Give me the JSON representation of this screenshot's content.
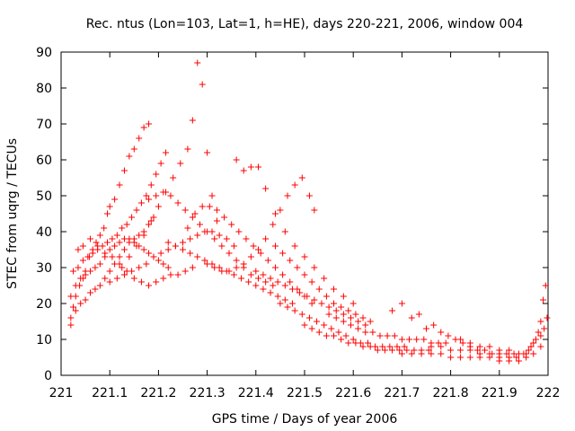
{
  "chart_data": {
    "type": "scatter",
    "title": "Rec. ntus (Lon=103, Lat=1, h=HE), days 220-221, 2006, window 004",
    "xlabel": "GPS time / Days of year 2006",
    "ylabel": "STEC from uqrg / TECUs",
    "xlim": [
      221,
      222
    ],
    "ylim": [
      0,
      90
    ],
    "xticks": [
      "221",
      "221.1",
      "221.2",
      "221.3",
      "221.4",
      "221.5",
      "221.6",
      "221.7",
      "221.8",
      "221.9",
      "222"
    ],
    "yticks": [
      "0",
      "10",
      "20",
      "30",
      "40",
      "50",
      "60",
      "70",
      "80",
      "90"
    ],
    "grid": false,
    "marker": "+",
    "color": "#ff0000",
    "points": [
      [
        221.02,
        14
      ],
      [
        221.025,
        19
      ],
      [
        221.03,
        22
      ],
      [
        221.038,
        25
      ],
      [
        221.045,
        27
      ],
      [
        221.05,
        29
      ],
      [
        221.058,
        33
      ],
      [
        221.065,
        35
      ],
      [
        221.072,
        37
      ],
      [
        221.08,
        39
      ],
      [
        221.088,
        41
      ],
      [
        221.095,
        45
      ],
      [
        221.1,
        47
      ],
      [
        221.11,
        49
      ],
      [
        221.12,
        53
      ],
      [
        221.13,
        57
      ],
      [
        221.14,
        61
      ],
      [
        221.15,
        63
      ],
      [
        221.16,
        66
      ],
      [
        221.17,
        69
      ],
      [
        221.18,
        70
      ],
      [
        221.02,
        16
      ],
      [
        221.03,
        18
      ],
      [
        221.04,
        20
      ],
      [
        221.05,
        21
      ],
      [
        221.06,
        23
      ],
      [
        221.07,
        24
      ],
      [
        221.08,
        25
      ],
      [
        221.09,
        27
      ],
      [
        221.1,
        29
      ],
      [
        221.11,
        31
      ],
      [
        221.12,
        33
      ],
      [
        221.13,
        35
      ],
      [
        221.14,
        37
      ],
      [
        221.15,
        38
      ],
      [
        221.16,
        39
      ],
      [
        221.17,
        40
      ],
      [
        221.18,
        42
      ],
      [
        221.19,
        44
      ],
      [
        221.02,
        22
      ],
      [
        221.03,
        25
      ],
      [
        221.04,
        27
      ],
      [
        221.05,
        28
      ],
      [
        221.06,
        29
      ],
      [
        221.07,
        30
      ],
      [
        221.08,
        31
      ],
      [
        221.09,
        33
      ],
      [
        221.1,
        35
      ],
      [
        221.11,
        36
      ],
      [
        221.12,
        37
      ],
      [
        221.13,
        38
      ],
      [
        221.14,
        38
      ],
      [
        221.15,
        37
      ],
      [
        221.16,
        36
      ],
      [
        221.17,
        35
      ],
      [
        221.18,
        34
      ],
      [
        221.19,
        33
      ],
      [
        221.2,
        32
      ],
      [
        221.21,
        31
      ],
      [
        221.22,
        30
      ],
      [
        221.025,
        29
      ],
      [
        221.035,
        30
      ],
      [
        221.045,
        32
      ],
      [
        221.055,
        33
      ],
      [
        221.065,
        34
      ],
      [
        221.075,
        35
      ],
      [
        221.085,
        36
      ],
      [
        221.095,
        37
      ],
      [
        221.105,
        38
      ],
      [
        221.115,
        39
      ],
      [
        221.125,
        41
      ],
      [
        221.135,
        42
      ],
      [
        221.145,
        44
      ],
      [
        221.155,
        46
      ],
      [
        221.165,
        48
      ],
      [
        221.175,
        50
      ],
      [
        221.185,
        53
      ],
      [
        221.195,
        56
      ],
      [
        221.205,
        59
      ],
      [
        221.215,
        62
      ],
      [
        221.035,
        35
      ],
      [
        221.045,
        36
      ],
      [
        221.06,
        38
      ],
      [
        221.075,
        36
      ],
      [
        221.09,
        34
      ],
      [
        221.105,
        33
      ],
      [
        221.12,
        31
      ],
      [
        221.135,
        29
      ],
      [
        221.15,
        27
      ],
      [
        221.165,
        26
      ],
      [
        221.18,
        25
      ],
      [
        221.195,
        26
      ],
      [
        221.21,
        27
      ],
      [
        221.225,
        28
      ],
      [
        221.24,
        28
      ],
      [
        221.255,
        29
      ],
      [
        221.27,
        30
      ],
      [
        221.1,
        26
      ],
      [
        221.115,
        27
      ],
      [
        221.13,
        28
      ],
      [
        221.145,
        29
      ],
      [
        221.16,
        30
      ],
      [
        221.175,
        31
      ],
      [
        221.19,
        33
      ],
      [
        221.205,
        34
      ],
      [
        221.22,
        35
      ],
      [
        221.235,
        36
      ],
      [
        221.25,
        37
      ],
      [
        221.265,
        38
      ],
      [
        221.28,
        39
      ],
      [
        221.295,
        40
      ],
      [
        221.31,
        40
      ],
      [
        221.325,
        39
      ],
      [
        221.34,
        38
      ],
      [
        221.355,
        36
      ],
      [
        221.125,
        30
      ],
      [
        221.14,
        33
      ],
      [
        221.155,
        36
      ],
      [
        221.17,
        39
      ],
      [
        221.185,
        43
      ],
      [
        221.2,
        47
      ],
      [
        221.215,
        51
      ],
      [
        221.23,
        55
      ],
      [
        221.245,
        59
      ],
      [
        221.26,
        63
      ],
      [
        221.27,
        71
      ],
      [
        221.28,
        87
      ],
      [
        221.29,
        81
      ],
      [
        221.3,
        62
      ],
      [
        221.31,
        50
      ],
      [
        221.32,
        43
      ],
      [
        221.18,
        49
      ],
      [
        221.195,
        50
      ],
      [
        221.21,
        51
      ],
      [
        221.225,
        50
      ],
      [
        221.24,
        48
      ],
      [
        221.255,
        46
      ],
      [
        221.27,
        44
      ],
      [
        221.285,
        42
      ],
      [
        221.3,
        40
      ],
      [
        221.315,
        38
      ],
      [
        221.33,
        36
      ],
      [
        221.345,
        34
      ],
      [
        221.36,
        32
      ],
      [
        221.375,
        30
      ],
      [
        221.39,
        28
      ],
      [
        221.405,
        27
      ],
      [
        221.42,
        26
      ],
      [
        221.435,
        25
      ],
      [
        221.22,
        37
      ],
      [
        221.235,
        36
      ],
      [
        221.25,
        35
      ],
      [
        221.265,
        34
      ],
      [
        221.28,
        33
      ],
      [
        221.295,
        32
      ],
      [
        221.31,
        31
      ],
      [
        221.325,
        30
      ],
      [
        221.34,
        29
      ],
      [
        221.355,
        28
      ],
      [
        221.37,
        27
      ],
      [
        221.385,
        26
      ],
      [
        221.4,
        25
      ],
      [
        221.415,
        24
      ],
      [
        221.43,
        23
      ],
      [
        221.445,
        22
      ],
      [
        221.46,
        21
      ],
      [
        221.475,
        20
      ],
      [
        221.26,
        41
      ],
      [
        221.275,
        45
      ],
      [
        221.29,
        47
      ],
      [
        221.305,
        47
      ],
      [
        221.32,
        46
      ],
      [
        221.335,
        44
      ],
      [
        221.35,
        42
      ],
      [
        221.365,
        40
      ],
      [
        221.38,
        38
      ],
      [
        221.395,
        36
      ],
      [
        221.41,
        34
      ],
      [
        221.425,
        32
      ],
      [
        221.44,
        30
      ],
      [
        221.455,
        28
      ],
      [
        221.47,
        26
      ],
      [
        221.485,
        24
      ],
      [
        221.5,
        22
      ],
      [
        221.515,
        20
      ],
      [
        221.3,
        31
      ],
      [
        221.315,
        30
      ],
      [
        221.33,
        29
      ],
      [
        221.345,
        29
      ],
      [
        221.36,
        30
      ],
      [
        221.375,
        31
      ],
      [
        221.39,
        33
      ],
      [
        221.405,
        35
      ],
      [
        221.42,
        38
      ],
      [
        221.435,
        42
      ],
      [
        221.45,
        46
      ],
      [
        221.465,
        50
      ],
      [
        221.48,
        53
      ],
      [
        221.495,
        55
      ],
      [
        221.51,
        50
      ],
      [
        221.52,
        46
      ],
      [
        221.36,
        60
      ],
      [
        221.375,
        57
      ],
      [
        221.39,
        58
      ],
      [
        221.405,
        58
      ],
      [
        221.42,
        52
      ],
      [
        221.44,
        45
      ],
      [
        221.46,
        40
      ],
      [
        221.48,
        36
      ],
      [
        221.5,
        33
      ],
      [
        221.52,
        30
      ],
      [
        221.54,
        27
      ],
      [
        221.56,
        24
      ],
      [
        221.58,
        22
      ],
      [
        221.6,
        20
      ],
      [
        221.4,
        29
      ],
      [
        221.415,
        28
      ],
      [
        221.43,
        27
      ],
      [
        221.445,
        26
      ],
      [
        221.46,
        25
      ],
      [
        221.475,
        24
      ],
      [
        221.49,
        23
      ],
      [
        221.505,
        22
      ],
      [
        221.52,
        21
      ],
      [
        221.535,
        20
      ],
      [
        221.55,
        19
      ],
      [
        221.565,
        18
      ],
      [
        221.58,
        17
      ],
      [
        221.595,
        16
      ],
      [
        221.61,
        15
      ],
      [
        221.625,
        14
      ],
      [
        221.44,
        36
      ],
      [
        221.455,
        34
      ],
      [
        221.47,
        32
      ],
      [
        221.485,
        30
      ],
      [
        221.5,
        28
      ],
      [
        221.515,
        26
      ],
      [
        221.53,
        24
      ],
      [
        221.545,
        22
      ],
      [
        221.56,
        20
      ],
      [
        221.575,
        19
      ],
      [
        221.59,
        18
      ],
      [
        221.605,
        17
      ],
      [
        221.62,
        16
      ],
      [
        221.635,
        15
      ],
      [
        221.45,
        20
      ],
      [
        221.465,
        19
      ],
      [
        221.48,
        18
      ],
      [
        221.495,
        17
      ],
      [
        221.51,
        16
      ],
      [
        221.525,
        15
      ],
      [
        221.54,
        14
      ],
      [
        221.555,
        13
      ],
      [
        221.57,
        12
      ],
      [
        221.585,
        11
      ],
      [
        221.6,
        10
      ],
      [
        221.615,
        9
      ],
      [
        221.63,
        9
      ],
      [
        221.645,
        8
      ],
      [
        221.66,
        8
      ],
      [
        221.675,
        8
      ],
      [
        221.69,
        8
      ],
      [
        221.705,
        8
      ],
      [
        221.5,
        14
      ],
      [
        221.515,
        13
      ],
      [
        221.53,
        12
      ],
      [
        221.545,
        11
      ],
      [
        221.56,
        11
      ],
      [
        221.575,
        10
      ],
      [
        221.59,
        9
      ],
      [
        221.605,
        9
      ],
      [
        221.62,
        8
      ],
      [
        221.635,
        8
      ],
      [
        221.65,
        7
      ],
      [
        221.665,
        7
      ],
      [
        221.68,
        7
      ],
      [
        221.695,
        7
      ],
      [
        221.71,
        7
      ],
      [
        221.725,
        7
      ],
      [
        221.74,
        7
      ],
      [
        221.755,
        7
      ],
      [
        221.55,
        17
      ],
      [
        221.565,
        16
      ],
      [
        221.58,
        15
      ],
      [
        221.595,
        14
      ],
      [
        221.61,
        13
      ],
      [
        221.625,
        12
      ],
      [
        221.64,
        12
      ],
      [
        221.655,
        11
      ],
      [
        221.67,
        11
      ],
      [
        221.685,
        11
      ],
      [
        221.7,
        10
      ],
      [
        221.715,
        10
      ],
      [
        221.73,
        10
      ],
      [
        221.745,
        10
      ],
      [
        221.76,
        9
      ],
      [
        221.775,
        9
      ],
      [
        221.79,
        9
      ],
      [
        221.68,
        18
      ],
      [
        221.7,
        20
      ],
      [
        221.72,
        16
      ],
      [
        221.735,
        17
      ],
      [
        221.75,
        13
      ],
      [
        221.765,
        14
      ],
      [
        221.78,
        12
      ],
      [
        221.795,
        11
      ],
      [
        221.81,
        10
      ],
      [
        221.825,
        9
      ],
      [
        221.84,
        8
      ],
      [
        221.855,
        7
      ],
      [
        221.87,
        7
      ],
      [
        221.885,
        6
      ],
      [
        221.9,
        6
      ],
      [
        221.915,
        6
      ],
      [
        221.93,
        6
      ],
      [
        221.7,
        6
      ],
      [
        221.72,
        6
      ],
      [
        221.74,
        6
      ],
      [
        221.76,
        6
      ],
      [
        221.78,
        6
      ],
      [
        221.8,
        5
      ],
      [
        221.82,
        5
      ],
      [
        221.84,
        5
      ],
      [
        221.86,
        5
      ],
      [
        221.88,
        5
      ],
      [
        221.9,
        4
      ],
      [
        221.92,
        4
      ],
      [
        221.94,
        4
      ],
      [
        221.955,
        5
      ],
      [
        221.97,
        6
      ],
      [
        221.985,
        8
      ],
      [
        221.76,
        8
      ],
      [
        221.78,
        8
      ],
      [
        221.8,
        7
      ],
      [
        221.82,
        7
      ],
      [
        221.84,
        7
      ],
      [
        221.86,
        6
      ],
      [
        221.88,
        6
      ],
      [
        221.9,
        5
      ],
      [
        221.92,
        5
      ],
      [
        221.935,
        5
      ],
      [
        221.95,
        6
      ],
      [
        221.96,
        7
      ],
      [
        221.97,
        9
      ],
      [
        221.98,
        12
      ],
      [
        221.985,
        15
      ],
      [
        221.99,
        21
      ],
      [
        221.995,
        25
      ],
      [
        221.82,
        10
      ],
      [
        221.84,
        9
      ],
      [
        221.86,
        8
      ],
      [
        221.88,
        8
      ],
      [
        221.9,
        7
      ],
      [
        221.92,
        7
      ],
      [
        221.94,
        6
      ],
      [
        221.955,
        6
      ],
      [
        221.965,
        8
      ],
      [
        221.975,
        10
      ],
      [
        221.985,
        11
      ],
      [
        221.992,
        13
      ],
      [
        221.998,
        16
      ]
    ]
  }
}
